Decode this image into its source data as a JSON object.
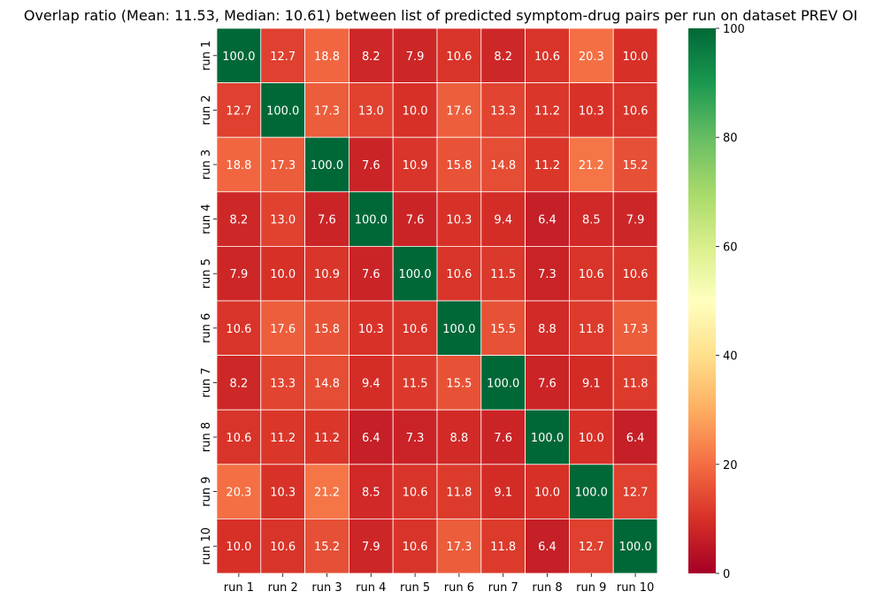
{
  "chart_data": {
    "type": "heatmap",
    "title": "Overlap ratio (Mean: 11.53, Median: 10.61) between list of predicted symptom-drug pairs per run on dataset PREV OI",
    "x_labels": [
      "run 1",
      "run 2",
      "run 3",
      "run 4",
      "run 5",
      "run 6",
      "run 7",
      "run 8",
      "run 9",
      "run 10"
    ],
    "y_labels": [
      "run 1",
      "run 2",
      "run 3",
      "run 4",
      "run 5",
      "run 6",
      "run 7",
      "run 8",
      "run 9",
      "run 10"
    ],
    "values": [
      [
        100.0,
        12.7,
        18.8,
        8.2,
        7.9,
        10.6,
        8.2,
        10.6,
        20.3,
        10.0
      ],
      [
        12.7,
        100.0,
        17.3,
        13.0,
        10.0,
        17.6,
        13.3,
        11.2,
        10.3,
        10.6
      ],
      [
        18.8,
        17.3,
        100.0,
        7.6,
        10.9,
        15.8,
        14.8,
        11.2,
        21.2,
        15.2
      ],
      [
        8.2,
        13.0,
        7.6,
        100.0,
        7.6,
        10.3,
        9.4,
        6.4,
        8.5,
        7.9
      ],
      [
        7.9,
        10.0,
        10.9,
        7.6,
        100.0,
        10.6,
        11.5,
        7.3,
        10.6,
        10.6
      ],
      [
        10.6,
        17.6,
        15.8,
        10.3,
        10.6,
        100.0,
        15.5,
        8.8,
        11.8,
        17.3
      ],
      [
        8.2,
        13.3,
        14.8,
        9.4,
        11.5,
        15.5,
        100.0,
        7.6,
        9.1,
        11.8
      ],
      [
        10.6,
        11.2,
        11.2,
        6.4,
        7.3,
        8.8,
        7.6,
        100.0,
        10.0,
        6.4
      ],
      [
        20.3,
        10.3,
        21.2,
        8.5,
        10.6,
        11.8,
        9.1,
        10.0,
        100.0,
        12.7
      ],
      [
        10.0,
        10.6,
        15.2,
        7.9,
        10.6,
        17.3,
        11.8,
        6.4,
        12.7,
        100.0
      ]
    ],
    "colormap": "RdYlGn",
    "color_range": [
      0,
      100
    ],
    "colorbar_ticks": [
      "0",
      "20",
      "40",
      "60",
      "80",
      "100"
    ],
    "annotations": true,
    "value_format": "1 decimal",
    "legend": "colorbar-right"
  }
}
